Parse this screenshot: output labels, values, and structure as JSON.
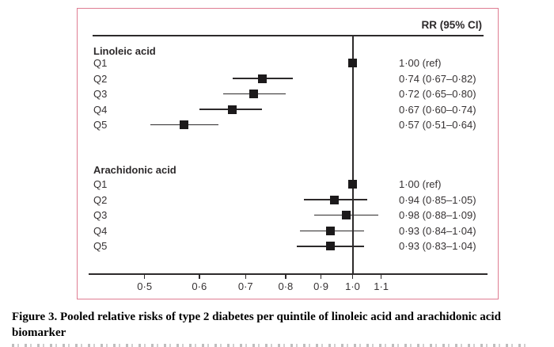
{
  "figure": {
    "column_header": "RR (95% CI)",
    "border_color": "#df7d92"
  },
  "caption": {
    "line1": "Figure 3. Pooled relative risks of type 2 diabetes per quintile of linoleic acid and arachidonic acid",
    "line2": "biomarker"
  },
  "chart_data": {
    "type": "forest",
    "title": "Pooled relative risks of type 2 diabetes per quintile of linoleic acid and arachidonic acid biomarker",
    "column_header": "RR (95% CI)",
    "x_axis": {
      "scale": "log",
      "ref_value": 1.0,
      "range_shown": [
        0.45,
        1.2
      ],
      "ticks": [
        {
          "value": 0.5,
          "label": "0·5"
        },
        {
          "value": 0.6,
          "label": "0·6"
        },
        {
          "value": 0.7,
          "label": "0·7"
        },
        {
          "value": 0.8,
          "label": "0·8"
        },
        {
          "value": 0.9,
          "label": "0·9"
        },
        {
          "value": 1.0,
          "label": "1·0"
        },
        {
          "value": 1.1,
          "label": "1·1"
        }
      ]
    },
    "groups": [
      {
        "name": "Linoleic acid",
        "rows": [
          {
            "label": "Q1",
            "rr": 1.0,
            "ci_low": null,
            "ci_high": null,
            "rr_text": "1·00 (ref)"
          },
          {
            "label": "Q2",
            "rr": 0.74,
            "ci_low": 0.67,
            "ci_high": 0.82,
            "rr_text": "0·74 (0·67–0·82)"
          },
          {
            "label": "Q3",
            "rr": 0.72,
            "ci_low": 0.65,
            "ci_high": 0.8,
            "rr_text": "0·72 (0·65–0·80)"
          },
          {
            "label": "Q4",
            "rr": 0.67,
            "ci_low": 0.6,
            "ci_high": 0.74,
            "rr_text": "0·67 (0·60–0·74)"
          },
          {
            "label": "Q5",
            "rr": 0.57,
            "ci_low": 0.51,
            "ci_high": 0.64,
            "rr_text": "0·57 (0·51–0·64)"
          }
        ]
      },
      {
        "name": "Arachidonic acid",
        "rows": [
          {
            "label": "Q1",
            "rr": 1.0,
            "ci_low": null,
            "ci_high": null,
            "rr_text": "1·00 (ref)"
          },
          {
            "label": "Q2",
            "rr": 0.94,
            "ci_low": 0.85,
            "ci_high": 1.05,
            "rr_text": "0·94 (0·85–1·05)"
          },
          {
            "label": "Q3",
            "rr": 0.98,
            "ci_low": 0.88,
            "ci_high": 1.09,
            "rr_text": "0·98 (0·88–1·09)"
          },
          {
            "label": "Q4",
            "rr": 0.93,
            "ci_low": 0.84,
            "ci_high": 1.04,
            "rr_text": "0·93 (0·84–1·04)"
          },
          {
            "label": "Q5",
            "rr": 0.93,
            "ci_low": 0.83,
            "ci_high": 1.04,
            "rr_text": "0·93 (0·83–1·04)"
          }
        ]
      }
    ]
  }
}
